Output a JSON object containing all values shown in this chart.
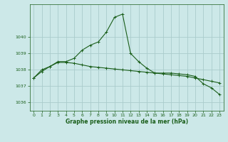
{
  "title": "Graphe pression niveau de la mer (hPa)",
  "background_color": "#cce8e8",
  "grid_color": "#aacccc",
  "line_color": "#1a5e1a",
  "x_values": [
    0,
    1,
    2,
    3,
    4,
    5,
    6,
    7,
    8,
    9,
    10,
    11,
    12,
    13,
    14,
    15,
    16,
    17,
    18,
    19,
    20,
    21,
    22,
    23
  ],
  "series1": [
    1037.5,
    1037.9,
    1038.2,
    1038.5,
    1038.5,
    1038.7,
    1039.2,
    1039.5,
    1039.7,
    1040.3,
    1041.2,
    1041.4,
    1039.0,
    1038.5,
    1038.1,
    1037.8,
    1037.8,
    1037.8,
    1037.75,
    1037.7,
    1037.6,
    1037.15,
    1036.9,
    1036.5
  ],
  "series2": [
    1037.5,
    1038.0,
    1038.2,
    1038.45,
    1038.45,
    1038.4,
    1038.3,
    1038.2,
    1038.15,
    1038.1,
    1038.05,
    1038.0,
    1037.95,
    1037.9,
    1037.85,
    1037.8,
    1037.75,
    1037.7,
    1037.65,
    1037.6,
    1037.5,
    1037.4,
    1037.3,
    1037.2
  ],
  "ylim": [
    1035.5,
    1042.0
  ],
  "yticks": [
    1036,
    1037,
    1038,
    1039,
    1040
  ],
  "xlim": [
    -0.5,
    23.5
  ],
  "xticks": [
    0,
    1,
    2,
    3,
    4,
    5,
    6,
    7,
    8,
    9,
    10,
    11,
    12,
    13,
    14,
    15,
    16,
    17,
    18,
    19,
    20,
    21,
    22,
    23
  ]
}
